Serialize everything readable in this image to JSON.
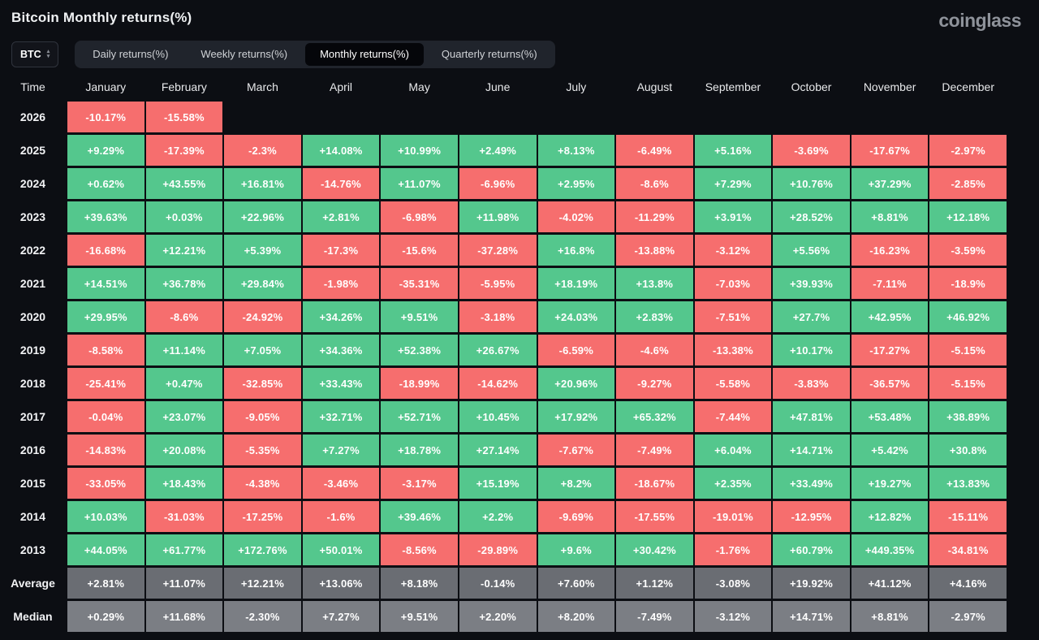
{
  "header": {
    "title": "Bitcoin Monthly returns(%)",
    "logo": "coinglass"
  },
  "controls": {
    "symbol": "BTC",
    "updown_icon": "sort-updown",
    "tabs": [
      {
        "label": "Daily returns(%)",
        "active": false
      },
      {
        "label": "Weekly returns(%)",
        "active": false
      },
      {
        "label": "Monthly returns(%)",
        "active": true
      },
      {
        "label": "Quarterly returns(%)",
        "active": false
      }
    ]
  },
  "colors": {
    "positive": "#54c78d",
    "negative": "#f66e6e",
    "average_row": "#6a6d73",
    "median_row": "#7b7e84",
    "background": "#0c0e13",
    "active_tab_bg": "#05060a"
  },
  "chart_data": {
    "type": "heatmap",
    "title": "Bitcoin Monthly returns(%)",
    "corner_label": "Time",
    "columns": [
      "January",
      "February",
      "March",
      "April",
      "May",
      "June",
      "July",
      "August",
      "September",
      "October",
      "November",
      "December"
    ],
    "rows": [
      {
        "label": "2026",
        "kind": "year",
        "values": [
          "-10.17%",
          "-15.58%",
          null,
          null,
          null,
          null,
          null,
          null,
          null,
          null,
          null,
          null
        ]
      },
      {
        "label": "2025",
        "kind": "year",
        "values": [
          "+9.29%",
          "-17.39%",
          "-2.3%",
          "+14.08%",
          "+10.99%",
          "+2.49%",
          "+8.13%",
          "-6.49%",
          "+5.16%",
          "-3.69%",
          "-17.67%",
          "-2.97%"
        ]
      },
      {
        "label": "2024",
        "kind": "year",
        "values": [
          "+0.62%",
          "+43.55%",
          "+16.81%",
          "-14.76%",
          "+11.07%",
          "-6.96%",
          "+2.95%",
          "-8.6%",
          "+7.29%",
          "+10.76%",
          "+37.29%",
          "-2.85%"
        ]
      },
      {
        "label": "2023",
        "kind": "year",
        "values": [
          "+39.63%",
          "+0.03%",
          "+22.96%",
          "+2.81%",
          "-6.98%",
          "+11.98%",
          "-4.02%",
          "-11.29%",
          "+3.91%",
          "+28.52%",
          "+8.81%",
          "+12.18%"
        ]
      },
      {
        "label": "2022",
        "kind": "year",
        "values": [
          "-16.68%",
          "+12.21%",
          "+5.39%",
          "-17.3%",
          "-15.6%",
          "-37.28%",
          "+16.8%",
          "-13.88%",
          "-3.12%",
          "+5.56%",
          "-16.23%",
          "-3.59%"
        ]
      },
      {
        "label": "2021",
        "kind": "year",
        "values": [
          "+14.51%",
          "+36.78%",
          "+29.84%",
          "-1.98%",
          "-35.31%",
          "-5.95%",
          "+18.19%",
          "+13.8%",
          "-7.03%",
          "+39.93%",
          "-7.11%",
          "-18.9%"
        ]
      },
      {
        "label": "2020",
        "kind": "year",
        "values": [
          "+29.95%",
          "-8.6%",
          "-24.92%",
          "+34.26%",
          "+9.51%",
          "-3.18%",
          "+24.03%",
          "+2.83%",
          "-7.51%",
          "+27.7%",
          "+42.95%",
          "+46.92%"
        ]
      },
      {
        "label": "2019",
        "kind": "year",
        "values": [
          "-8.58%",
          "+11.14%",
          "+7.05%",
          "+34.36%",
          "+52.38%",
          "+26.67%",
          "-6.59%",
          "-4.6%",
          "-13.38%",
          "+10.17%",
          "-17.27%",
          "-5.15%"
        ]
      },
      {
        "label": "2018",
        "kind": "year",
        "values": [
          "-25.41%",
          "+0.47%",
          "-32.85%",
          "+33.43%",
          "-18.99%",
          "-14.62%",
          "+20.96%",
          "-9.27%",
          "-5.58%",
          "-3.83%",
          "-36.57%",
          "-5.15%"
        ]
      },
      {
        "label": "2017",
        "kind": "year",
        "values": [
          "-0.04%",
          "+23.07%",
          "-9.05%",
          "+32.71%",
          "+52.71%",
          "+10.45%",
          "+17.92%",
          "+65.32%",
          "-7.44%",
          "+47.81%",
          "+53.48%",
          "+38.89%"
        ]
      },
      {
        "label": "2016",
        "kind": "year",
        "values": [
          "-14.83%",
          "+20.08%",
          "-5.35%",
          "+7.27%",
          "+18.78%",
          "+27.14%",
          "-7.67%",
          "-7.49%",
          "+6.04%",
          "+14.71%",
          "+5.42%",
          "+30.8%"
        ]
      },
      {
        "label": "2015",
        "kind": "year",
        "values": [
          "-33.05%",
          "+18.43%",
          "-4.38%",
          "-3.46%",
          "-3.17%",
          "+15.19%",
          "+8.2%",
          "-18.67%",
          "+2.35%",
          "+33.49%",
          "+19.27%",
          "+13.83%"
        ]
      },
      {
        "label": "2014",
        "kind": "year",
        "values": [
          "+10.03%",
          "-31.03%",
          "-17.25%",
          "-1.6%",
          "+39.46%",
          "+2.2%",
          "-9.69%",
          "-17.55%",
          "-19.01%",
          "-12.95%",
          "+12.82%",
          "-15.11%"
        ]
      },
      {
        "label": "2013",
        "kind": "year",
        "values": [
          "+44.05%",
          "+61.77%",
          "+172.76%",
          "+50.01%",
          "-8.56%",
          "-29.89%",
          "+9.6%",
          "+30.42%",
          "-1.76%",
          "+60.79%",
          "+449.35%",
          "-34.81%"
        ]
      },
      {
        "label": "Average",
        "kind": "average",
        "values": [
          "+2.81%",
          "+11.07%",
          "+12.21%",
          "+13.06%",
          "+8.18%",
          "-0.14%",
          "+7.60%",
          "+1.12%",
          "-3.08%",
          "+19.92%",
          "+41.12%",
          "+4.16%"
        ]
      },
      {
        "label": "Median",
        "kind": "median",
        "values": [
          "+0.29%",
          "+11.68%",
          "-2.30%",
          "+7.27%",
          "+9.51%",
          "+2.20%",
          "+8.20%",
          "-7.49%",
          "-3.12%",
          "+14.71%",
          "+8.81%",
          "-2.97%"
        ]
      }
    ]
  }
}
